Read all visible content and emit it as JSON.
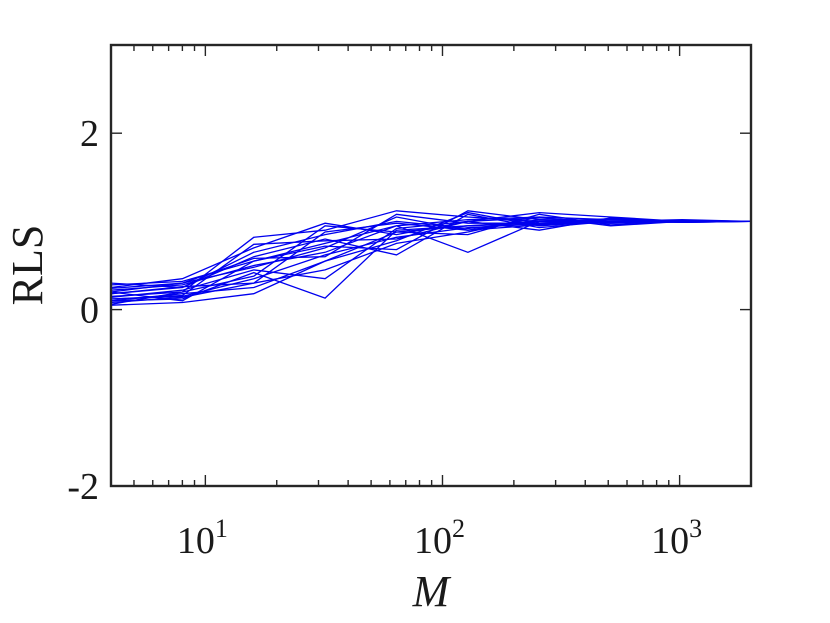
{
  "chart_data": {
    "type": "line",
    "xlabel": "M",
    "ylabel": "RLS",
    "xscale": "log",
    "xlim": [
      4,
      2000
    ],
    "ylim": [
      -2,
      3
    ],
    "x_tick_labels": [
      {
        "value": 10,
        "base": "10",
        "exp": "1"
      },
      {
        "value": 100,
        "base": "10",
        "exp": "2"
      },
      {
        "value": 1000,
        "base": "10",
        "exp": "3"
      }
    ],
    "y_tick_labels": [
      {
        "value": -2,
        "label": "-2"
      },
      {
        "value": 0,
        "label": "0"
      },
      {
        "value": 2,
        "label": "2"
      }
    ],
    "grid": false,
    "line_color": "#0000ee",
    "x": [
      4,
      8,
      16,
      32,
      64,
      128,
      256,
      512,
      1024,
      2048
    ],
    "series": [
      {
        "values": [
          0.12,
          0.15,
          0.35,
          0.62,
          0.82,
          0.93,
          0.97,
          0.99,
          1.0,
          1.0
        ]
      },
      {
        "values": [
          0.28,
          0.32,
          0.55,
          0.75,
          0.95,
          1.02,
          1.05,
          1.02,
          1.01,
          1.0
        ]
      },
      {
        "values": [
          0.05,
          0.08,
          0.18,
          0.55,
          0.88,
          0.95,
          1.0,
          0.98,
          1.0,
          1.0
        ]
      },
      {
        "values": [
          0.2,
          0.3,
          0.48,
          0.7,
          1.05,
          0.9,
          1.02,
          1.0,
          0.99,
          1.0
        ]
      },
      {
        "values": [
          0.15,
          0.2,
          0.82,
          0.9,
          1.12,
          1.05,
          1.0,
          1.03,
          1.0,
          1.0
        ]
      },
      {
        "values": [
          0.1,
          0.12,
          0.42,
          0.13,
          0.9,
          0.95,
          0.98,
          1.0,
          1.0,
          1.0
        ]
      },
      {
        "values": [
          0.18,
          0.25,
          0.6,
          0.8,
          0.62,
          1.08,
          0.93,
          1.0,
          1.01,
          1.0
        ]
      },
      {
        "values": [
          0.22,
          0.28,
          0.5,
          0.65,
          0.95,
          0.65,
          1.0,
          1.0,
          1.0,
          1.0
        ]
      },
      {
        "values": [
          0.08,
          0.14,
          0.3,
          0.45,
          0.75,
          0.88,
          1.05,
          0.95,
          1.0,
          1.0
        ]
      },
      {
        "values": [
          0.25,
          0.35,
          0.7,
          0.98,
          0.85,
          1.0,
          1.1,
          1.05,
          1.0,
          1.0
        ]
      },
      {
        "values": [
          0.1,
          0.18,
          0.25,
          0.55,
          0.78,
          1.1,
          0.95,
          1.0,
          1.02,
          1.0
        ]
      },
      {
        "values": [
          0.3,
          0.25,
          0.65,
          0.85,
          1.0,
          0.92,
          1.0,
          0.98,
          1.0,
          1.0
        ]
      },
      {
        "values": [
          0.14,
          0.22,
          0.45,
          0.35,
          0.92,
          1.0,
          0.9,
          1.04,
          0.99,
          1.0
        ]
      },
      {
        "values": [
          0.2,
          0.1,
          0.55,
          0.72,
          0.68,
          1.12,
          1.02,
          1.0,
          1.0,
          1.0
        ]
      },
      {
        "values": [
          0.06,
          0.2,
          0.38,
          0.95,
          0.88,
          0.85,
          1.08,
          0.96,
          1.0,
          1.0
        ]
      },
      {
        "values": [
          0.24,
          0.3,
          0.58,
          0.6,
          1.08,
          0.98,
          0.98,
          1.02,
          1.01,
          1.0
        ]
      },
      {
        "values": [
          0.12,
          0.16,
          0.74,
          0.78,
          0.8,
          1.0,
          1.04,
          0.99,
          1.0,
          1.0
        ]
      },
      {
        "values": [
          0.18,
          0.26,
          0.3,
          0.88,
          0.98,
          0.9,
          0.96,
          1.0,
          0.99,
          1.0
        ]
      }
    ]
  }
}
